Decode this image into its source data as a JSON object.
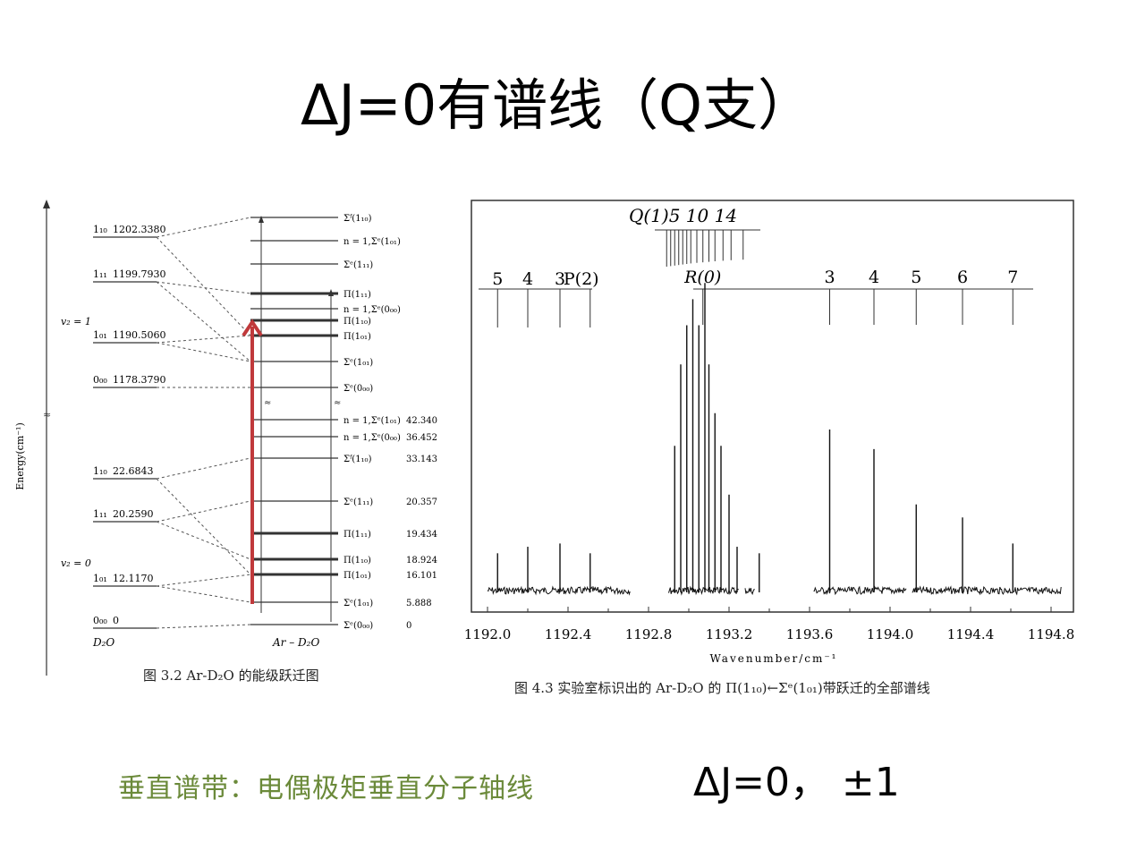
{
  "title": "ΔJ=0有谱线（Q支）",
  "energy_diagram": {
    "axis_label": "Energy(cm⁻¹)",
    "left_levels": [
      {
        "label": "1₁₀",
        "value": "1202.3380"
      },
      {
        "label": "1₁₁",
        "value": "1199.7930"
      },
      {
        "label": "1₀₁",
        "value": "1190.5060"
      },
      {
        "label": "0₀₀",
        "value": "1178.3790"
      },
      {
        "label": "1₁₀",
        "value": "22.6843"
      },
      {
        "label": "1₁₁",
        "value": "20.2590"
      },
      {
        "label": "1₀₁",
        "value": "12.1170"
      },
      {
        "label": "0₀₀",
        "value": "0"
      }
    ],
    "v_labels": [
      "v₂ = 1",
      "v₂ = 0"
    ],
    "right_levels": [
      {
        "label": "Σᶠ(1₁₀)",
        "value": ""
      },
      {
        "label": "n = 1,Σᵉ(1₀₁)",
        "value": ""
      },
      {
        "label": "Σᵉ(1₁₁)",
        "value": ""
      },
      {
        "label": "Π(1₁₁)",
        "value": ""
      },
      {
        "label": "n = 1,Σᵉ(0₀₀)",
        "value": ""
      },
      {
        "label": "Π(1₁₀)",
        "value": ""
      },
      {
        "label": "Π(1₀₁)",
        "value": ""
      },
      {
        "label": "Σᵉ(1₀₁)",
        "value": ""
      },
      {
        "label": "Σᵉ(0₀₀)",
        "value": ""
      },
      {
        "label": "n = 1,Σᵉ(1₀₁)",
        "value": "42.340"
      },
      {
        "label": "n = 1,Σᵉ(0₀₀)",
        "value": "36.452"
      },
      {
        "label": "Σᶠ(1₁₀)",
        "value": "33.143"
      },
      {
        "label": "Σᵉ(1₁₁)",
        "value": "20.357"
      },
      {
        "label": "Π(1₁₁)",
        "value": "19.434"
      },
      {
        "label": "Π(1₁₀)",
        "value": "18.924"
      },
      {
        "label": "Π(1₀₁)",
        "value": "16.101"
      },
      {
        "label": "Σᵉ(1₀₁)",
        "value": "5.888"
      },
      {
        "label": "Σᵉ(0₀₀)",
        "value": "0"
      }
    ],
    "bottom_left_label": "D₂O",
    "bottom_right_label": "Ar – D₂O",
    "caption": "图 3.2 Ar-D₂O 的能级跃迁图"
  },
  "spectrum": {
    "q_branch_label": "Q(1)5  10  14",
    "p_branch_labels": [
      "5",
      "4",
      "3",
      "P(2)"
    ],
    "r_branch_labels": [
      "R(0)",
      "3",
      "4",
      "5",
      "6",
      "7"
    ],
    "xlabel": "Wavenumber/cm⁻¹",
    "caption": "图 4.3  实验室标识出的 Ar-D₂O 的 Π(1₁₀)←Σᵉ(1₀₁)带跃迁的全部谱线"
  },
  "chart_data": {
    "type": "line",
    "title": "",
    "xlabel": "Wavenumber/cm⁻¹",
    "ylabel": "",
    "xlim": [
      1191.9,
      1194.95
    ],
    "x_ticks": [
      "1192.0",
      "1192.4",
      "1192.8",
      "1193.2",
      "1193.6",
      "1194.0",
      "1194.4",
      "1194.8"
    ],
    "x_tick_values": [
      1192.0,
      1192.4,
      1192.8,
      1193.2,
      1193.6,
      1194.0,
      1194.4,
      1194.8
    ],
    "lines": [
      {
        "x": 1192.05,
        "h": 0.12
      },
      {
        "x": 1192.2,
        "h": 0.14
      },
      {
        "x": 1192.36,
        "h": 0.15
      },
      {
        "x": 1192.51,
        "h": 0.12
      },
      {
        "x": 1192.93,
        "h": 0.45
      },
      {
        "x": 1192.96,
        "h": 0.7
      },
      {
        "x": 1192.99,
        "h": 0.82
      },
      {
        "x": 1193.02,
        "h": 0.9
      },
      {
        "x": 1193.05,
        "h": 0.82
      },
      {
        "x": 1193.08,
        "h": 0.95
      },
      {
        "x": 1193.1,
        "h": 0.7
      },
      {
        "x": 1193.13,
        "h": 0.55
      },
      {
        "x": 1193.16,
        "h": 0.45
      },
      {
        "x": 1193.2,
        "h": 0.3
      },
      {
        "x": 1193.24,
        "h": 0.14
      },
      {
        "x": 1193.35,
        "h": 0.12
      },
      {
        "x": 1193.7,
        "h": 0.5
      },
      {
        "x": 1193.92,
        "h": 0.44
      },
      {
        "x": 1194.13,
        "h": 0.27
      },
      {
        "x": 1194.36,
        "h": 0.23
      },
      {
        "x": 1194.61,
        "h": 0.15
      }
    ],
    "grid": false
  },
  "bottom_left": "垂直谱带：电偶极矩垂直分子轴线",
  "bottom_right": "ΔJ=0， ±1",
  "colors": {
    "green_text": "#6b8a3a",
    "arrow": "#c0393b"
  }
}
